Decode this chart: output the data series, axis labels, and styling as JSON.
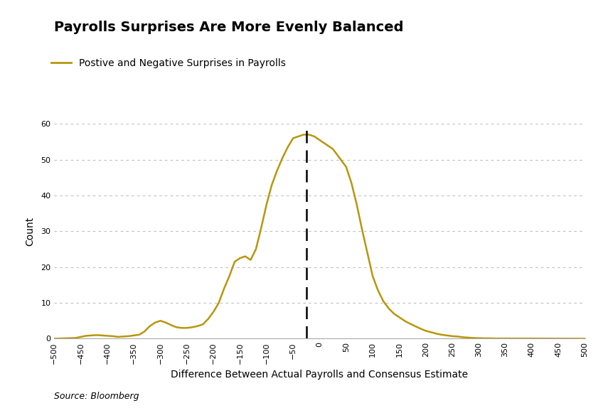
{
  "title": "Payrolls Surprises Are More Evenly Balanced",
  "legend_label": "Postive and Negative Surprises in Payrolls",
  "xlabel": "Difference Between Actual Payrolls and Consensus Estimate",
  "ylabel": "Count",
  "source": "Source: Bloomberg",
  "line_color": "#B8960C",
  "dashed_line_color": "#000000",
  "dashed_line_x": -25,
  "background_color": "#FFFFFF",
  "xlim": [
    -500,
    500
  ],
  "ylim": [
    0,
    60
  ],
  "xticks": [
    -500,
    -450,
    -400,
    -350,
    -300,
    -250,
    -200,
    -150,
    -100,
    -50,
    0,
    50,
    100,
    150,
    200,
    250,
    300,
    350,
    400,
    450,
    500
  ],
  "yticks": [
    0,
    10,
    20,
    30,
    40,
    50,
    60
  ],
  "curve_x": [
    -500,
    -480,
    -460,
    -450,
    -440,
    -430,
    -420,
    -410,
    -400,
    -390,
    -380,
    -370,
    -360,
    -350,
    -340,
    -330,
    -320,
    -310,
    -300,
    -290,
    -280,
    -270,
    -260,
    -250,
    -240,
    -230,
    -220,
    -210,
    -200,
    -190,
    -180,
    -170,
    -160,
    -150,
    -140,
    -130,
    -120,
    -110,
    -100,
    -90,
    -80,
    -70,
    -60,
    -50,
    -40,
    -30,
    -25,
    -20,
    -10,
    0,
    10,
    20,
    25,
    30,
    40,
    50,
    60,
    70,
    80,
    90,
    100,
    110,
    120,
    130,
    140,
    150,
    160,
    170,
    180,
    190,
    200,
    210,
    220,
    230,
    240,
    250,
    260,
    270,
    280,
    290,
    300,
    310,
    320,
    330,
    350,
    400,
    450,
    500
  ],
  "curve_y": [
    0.0,
    0.1,
    0.2,
    0.5,
    0.8,
    0.9,
    1.0,
    0.9,
    0.8,
    0.7,
    0.5,
    0.6,
    0.7,
    0.9,
    1.1,
    2.0,
    3.5,
    4.5,
    5.0,
    4.5,
    3.8,
    3.2,
    3.0,
    3.0,
    3.2,
    3.5,
    4.0,
    5.5,
    7.5,
    10.0,
    14.0,
    17.5,
    21.5,
    22.5,
    23.0,
    22.0,
    25.0,
    31.0,
    37.5,
    43.0,
    47.0,
    50.5,
    53.5,
    56.0,
    56.5,
    57.0,
    57.0,
    57.0,
    56.5,
    55.5,
    54.5,
    53.5,
    53.0,
    52.0,
    50.0,
    48.0,
    43.5,
    37.5,
    30.5,
    24.0,
    17.5,
    13.5,
    10.5,
    8.5,
    7.0,
    6.0,
    5.0,
    4.2,
    3.5,
    2.8,
    2.2,
    1.8,
    1.4,
    1.1,
    0.9,
    0.7,
    0.6,
    0.4,
    0.3,
    0.2,
    0.15,
    0.1,
    0.1,
    0.05,
    0.05,
    0.05,
    0.02,
    0.0
  ],
  "title_fontsize": 14,
  "legend_fontsize": 10,
  "label_fontsize": 10,
  "tick_fontsize": 8,
  "source_fontsize": 9
}
